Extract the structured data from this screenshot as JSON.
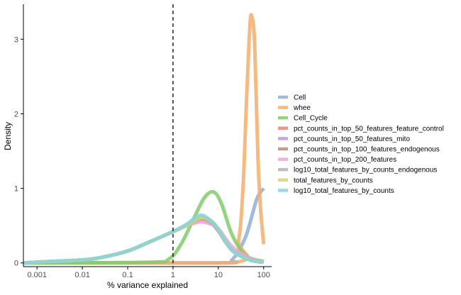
{
  "chart_data": {
    "type": "area",
    "xlabel": "% variance explained",
    "ylabel": "Density",
    "xscale": "log10",
    "xlim": [
      0.0005,
      150
    ],
    "ylim": [
      -0.05,
      3.45
    ],
    "x_ticks": [
      0.001,
      0.01,
      0.1,
      1,
      10,
      100
    ],
    "x_tick_labels": [
      "0.001",
      "0.01",
      "0.1",
      "1",
      "10",
      "100"
    ],
    "y_ticks": [
      0,
      1,
      2,
      3
    ],
    "y_tick_labels": [
      "0",
      "1",
      "2",
      "3"
    ],
    "vline": {
      "x": 1,
      "style": "dashed"
    },
    "grid": false,
    "legend_position": "right",
    "series": [
      {
        "name": "Cell",
        "color": "#8fafd6",
        "x": [
          0.0005,
          10,
          20,
          40,
          70,
          100
        ],
        "y": [
          0,
          0,
          0.04,
          0.35,
          0.85,
          1.0
        ]
      },
      {
        "name": "whee",
        "color": "#f5ad68",
        "x": [
          0.0005,
          18,
          28,
          35,
          42,
          50,
          55,
          62,
          68,
          75,
          85,
          100
        ],
        "y": [
          0,
          0,
          0.3,
          1.0,
          2.2,
          3.2,
          3.3,
          3.05,
          2.3,
          1.4,
          0.75,
          0.25
        ]
      },
      {
        "name": "Cell_Cycle",
        "color": "#7fcd6b",
        "x": [
          0.0005,
          0.3,
          0.8,
          1.5,
          3,
          5,
          8,
          12,
          20,
          40,
          100
        ],
        "y": [
          0,
          0.01,
          0.05,
          0.25,
          0.62,
          0.88,
          0.95,
          0.78,
          0.38,
          0.1,
          0.02
        ]
      },
      {
        "name": "pct_counts_in_top_50_features_feature_control",
        "color": "#ec8377",
        "x": [
          0.0005,
          0.001,
          0.01,
          0.03,
          0.1,
          0.3,
          1,
          2,
          4,
          7,
          10,
          20,
          50,
          100
        ],
        "y": [
          0,
          0.01,
          0.04,
          0.08,
          0.16,
          0.28,
          0.42,
          0.5,
          0.6,
          0.55,
          0.45,
          0.18,
          0.04,
          0.01
        ]
      },
      {
        "name": "pct_counts_in_top_50_features_mito",
        "color": "#b99ada",
        "x": [
          0.0005,
          0.001,
          0.01,
          0.03,
          0.1,
          0.3,
          1,
          2,
          4,
          7,
          10,
          20,
          50,
          100
        ],
        "y": [
          0,
          0.01,
          0.04,
          0.08,
          0.16,
          0.28,
          0.42,
          0.5,
          0.59,
          0.54,
          0.44,
          0.17,
          0.04,
          0.01
        ]
      },
      {
        "name": "pct_counts_in_top_100_features_endogenous",
        "color": "#b08f82",
        "x": [
          0.0005,
          0.001,
          0.01,
          0.03,
          0.1,
          0.3,
          1,
          2,
          4,
          7,
          10,
          20,
          50,
          100
        ],
        "y": [
          0,
          0.01,
          0.04,
          0.08,
          0.16,
          0.28,
          0.42,
          0.5,
          0.58,
          0.53,
          0.43,
          0.17,
          0.04,
          0.01
        ]
      },
      {
        "name": "pct_counts_in_top_200_features",
        "color": "#f0a3d2",
        "x": [
          0.0005,
          0.001,
          0.01,
          0.03,
          0.1,
          0.3,
          1,
          2,
          4,
          7,
          10,
          20,
          50,
          100
        ],
        "y": [
          0,
          0.01,
          0.04,
          0.08,
          0.16,
          0.28,
          0.42,
          0.5,
          0.55,
          0.52,
          0.46,
          0.22,
          0.06,
          0.01
        ]
      },
      {
        "name": "log10_total_features_by_counts_endogenous",
        "color": "#b4b4b4",
        "x": [
          0.0005,
          0.001,
          0.01,
          0.03,
          0.1,
          0.3,
          1,
          2,
          4,
          7,
          10,
          20,
          50,
          100
        ],
        "y": [
          0,
          0.01,
          0.04,
          0.08,
          0.16,
          0.28,
          0.42,
          0.5,
          0.6,
          0.55,
          0.44,
          0.17,
          0.04,
          0.01
        ]
      },
      {
        "name": "total_features_by_counts",
        "color": "#d8d56a",
        "x": [
          0.0005,
          0.001,
          0.01,
          0.03,
          0.1,
          0.3,
          1,
          2,
          4,
          7,
          10,
          20,
          50,
          100
        ],
        "y": [
          0,
          0.01,
          0.04,
          0.08,
          0.16,
          0.28,
          0.42,
          0.5,
          0.61,
          0.56,
          0.45,
          0.17,
          0.04,
          0.01
        ]
      },
      {
        "name": "log10_total_features_by_counts",
        "color": "#85d3df",
        "x": [
          0.0005,
          0.001,
          0.01,
          0.03,
          0.1,
          0.3,
          1,
          2,
          4,
          7,
          10,
          20,
          50,
          100
        ],
        "y": [
          0,
          0.01,
          0.04,
          0.08,
          0.16,
          0.28,
          0.42,
          0.52,
          0.64,
          0.56,
          0.45,
          0.17,
          0.04,
          0.01
        ]
      }
    ]
  }
}
